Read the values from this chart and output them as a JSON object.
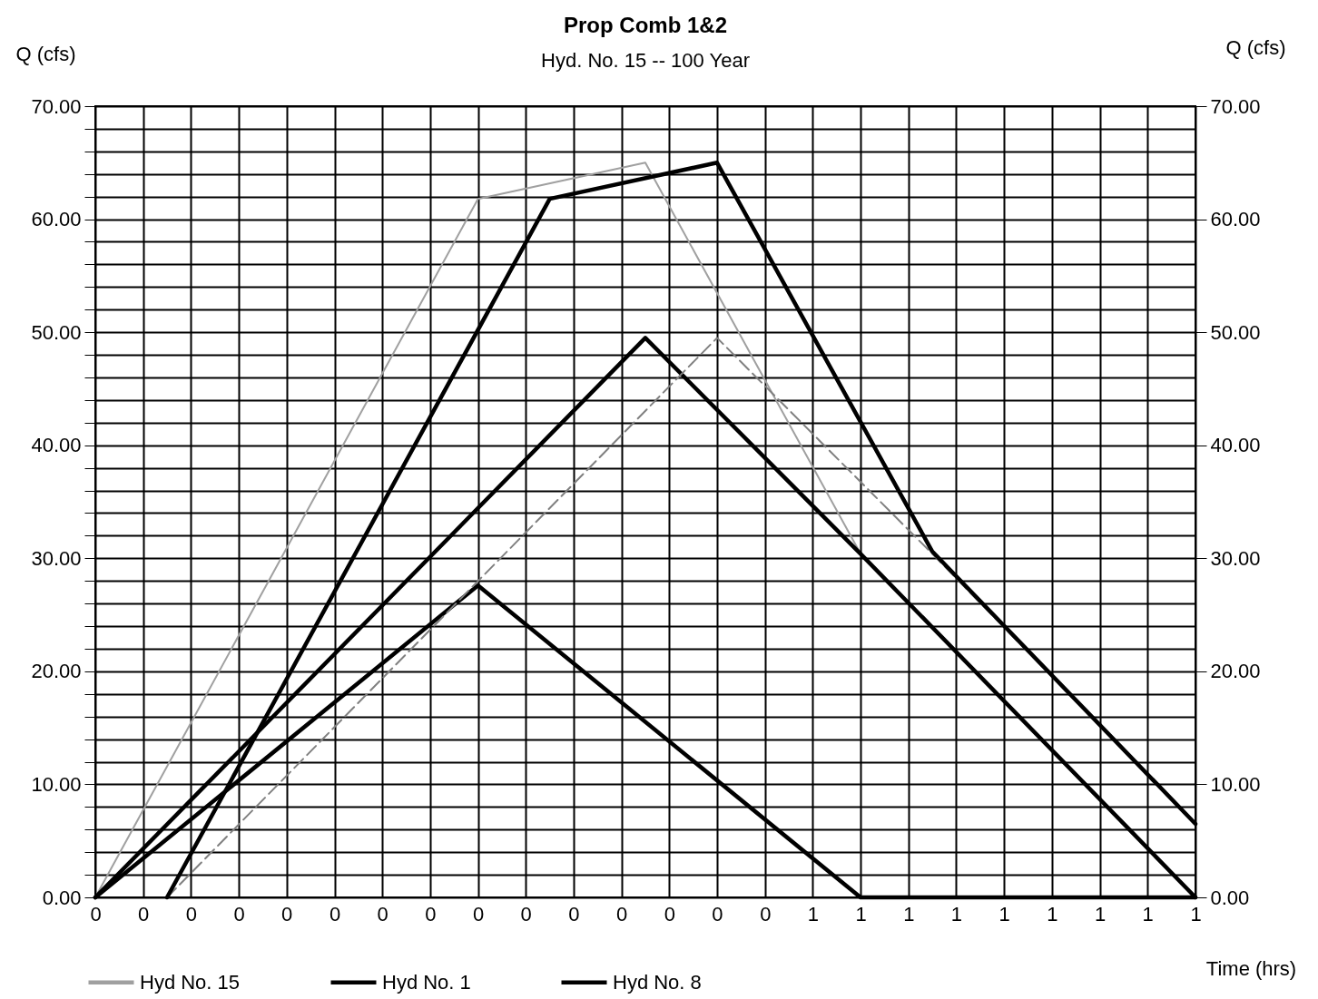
{
  "chart_data": {
    "type": "line",
    "title": "Prop Comb 1&2",
    "subtitle": "Hyd. No. 15 -- 100 Year",
    "xlabel": "Time (hrs)",
    "ylabel": "Q (cfs)",
    "y2label": "Q (cfs)",
    "series": [
      {
        "name": "Hyd No. 15",
        "color": "#a0a0a0",
        "x": [
          0,
          0.2667,
          0.3833,
          0.5333,
          0.7667
        ],
        "values": [
          0,
          61.8,
          65.0,
          30.4,
          0
        ]
      },
      {
        "name": "Hyd No. 1",
        "color": "#000000",
        "x": [
          0,
          0.3833,
          0.5333,
          0.7667
        ],
        "values": [
          0,
          49.5,
          30.4,
          0
        ]
      },
      {
        "name": "Hyd No. 8",
        "color": "#000000",
        "x": [
          0,
          0.2667,
          0.5333,
          0.7667
        ],
        "values": [
          0,
          27.6,
          0,
          0
        ]
      },
      {
        "color": "#808080",
        "line_style": "dashed",
        "x": [
          0.05,
          0.4333,
          0.5833,
          0.7667
        ],
        "values": [
          0,
          49.5,
          30.4,
          6.5
        ]
      },
      {
        "color": "#000000",
        "x": [
          0.05,
          0.3167,
          0.4333,
          0.5833,
          0.7667
        ],
        "values": [
          0,
          61.8,
          65.0,
          30.6,
          6.5
        ]
      }
    ],
    "xlim": [
      0,
      0.7667
    ],
    "xticks": [
      {
        "value": 0,
        "label": "0"
      },
      {
        "value": 0.0333,
        "label": "0"
      },
      {
        "value": 0.0667,
        "label": "0"
      },
      {
        "value": 0.1,
        "label": "0"
      },
      {
        "value": 0.1333,
        "label": "0"
      },
      {
        "value": 0.1667,
        "label": "0"
      },
      {
        "value": 0.2,
        "label": "0"
      },
      {
        "value": 0.2333,
        "label": "0"
      },
      {
        "value": 0.2667,
        "label": "0"
      },
      {
        "value": 0.3,
        "label": "0"
      },
      {
        "value": 0.3333,
        "label": "0"
      },
      {
        "value": 0.3667,
        "label": "0"
      },
      {
        "value": 0.4,
        "label": "0"
      },
      {
        "value": 0.4333,
        "label": "0"
      },
      {
        "value": 0.4667,
        "label": "0"
      },
      {
        "value": 0.5,
        "label": "1"
      },
      {
        "value": 0.5333,
        "label": "1"
      },
      {
        "value": 0.5667,
        "label": "1"
      },
      {
        "value": 0.6,
        "label": "1"
      },
      {
        "value": 0.6333,
        "label": "1"
      },
      {
        "value": 0.6667,
        "label": "1"
      },
      {
        "value": 0.7,
        "label": "1"
      },
      {
        "value": 0.7333,
        "label": "1"
      },
      {
        "value": 0.7667,
        "label": "1"
      }
    ],
    "ylim": [
      0,
      70
    ],
    "yticks": [
      {
        "value": 0,
        "label": "0.00"
      },
      {
        "value": 2,
        "label": null
      },
      {
        "value": 4,
        "label": null
      },
      {
        "value": 6,
        "label": null
      },
      {
        "value": 8,
        "label": null
      },
      {
        "value": 10,
        "label": "10.00"
      },
      {
        "value": 12,
        "label": null
      },
      {
        "value": 14,
        "label": null
      },
      {
        "value": 16,
        "label": null
      },
      {
        "value": 18,
        "label": null
      },
      {
        "value": 20,
        "label": "20.00"
      },
      {
        "value": 22,
        "label": null
      },
      {
        "value": 24,
        "label": null
      },
      {
        "value": 26,
        "label": null
      },
      {
        "value": 28,
        "label": null
      },
      {
        "value": 30,
        "label": "30.00"
      },
      {
        "value": 32,
        "label": null
      },
      {
        "value": 34,
        "label": null
      },
      {
        "value": 36,
        "label": null
      },
      {
        "value": 38,
        "label": null
      },
      {
        "value": 40,
        "label": "40.00"
      },
      {
        "value": 42,
        "label": null
      },
      {
        "value": 44,
        "label": null
      },
      {
        "value": 46,
        "label": null
      },
      {
        "value": 48,
        "label": null
      },
      {
        "value": 50,
        "label": "50.00"
      },
      {
        "value": 52,
        "label": null
      },
      {
        "value": 54,
        "label": null
      },
      {
        "value": 56,
        "label": null
      },
      {
        "value": 58,
        "label": null
      },
      {
        "value": 60,
        "label": "60.00"
      },
      {
        "value": 62,
        "label": null
      },
      {
        "value": 64,
        "label": null
      },
      {
        "value": 66,
        "label": null
      },
      {
        "value": 68,
        "label": null
      },
      {
        "value": 70,
        "label": "70.00"
      }
    ],
    "y2lim": [
      0,
      70
    ],
    "y2ticks": [
      {
        "value": 0,
        "label": "0.00"
      },
      {
        "value": 10,
        "label": "10.00"
      },
      {
        "value": 20,
        "label": "20.00"
      },
      {
        "value": 30,
        "label": "30.00"
      },
      {
        "value": 40,
        "label": "40.00"
      },
      {
        "value": 50,
        "label": "50.00"
      },
      {
        "value": 60,
        "label": "60.00"
      },
      {
        "value": 70,
        "label": "70.00"
      }
    ],
    "grid": true,
    "legend": "bottom left",
    "marker": "none"
  }
}
